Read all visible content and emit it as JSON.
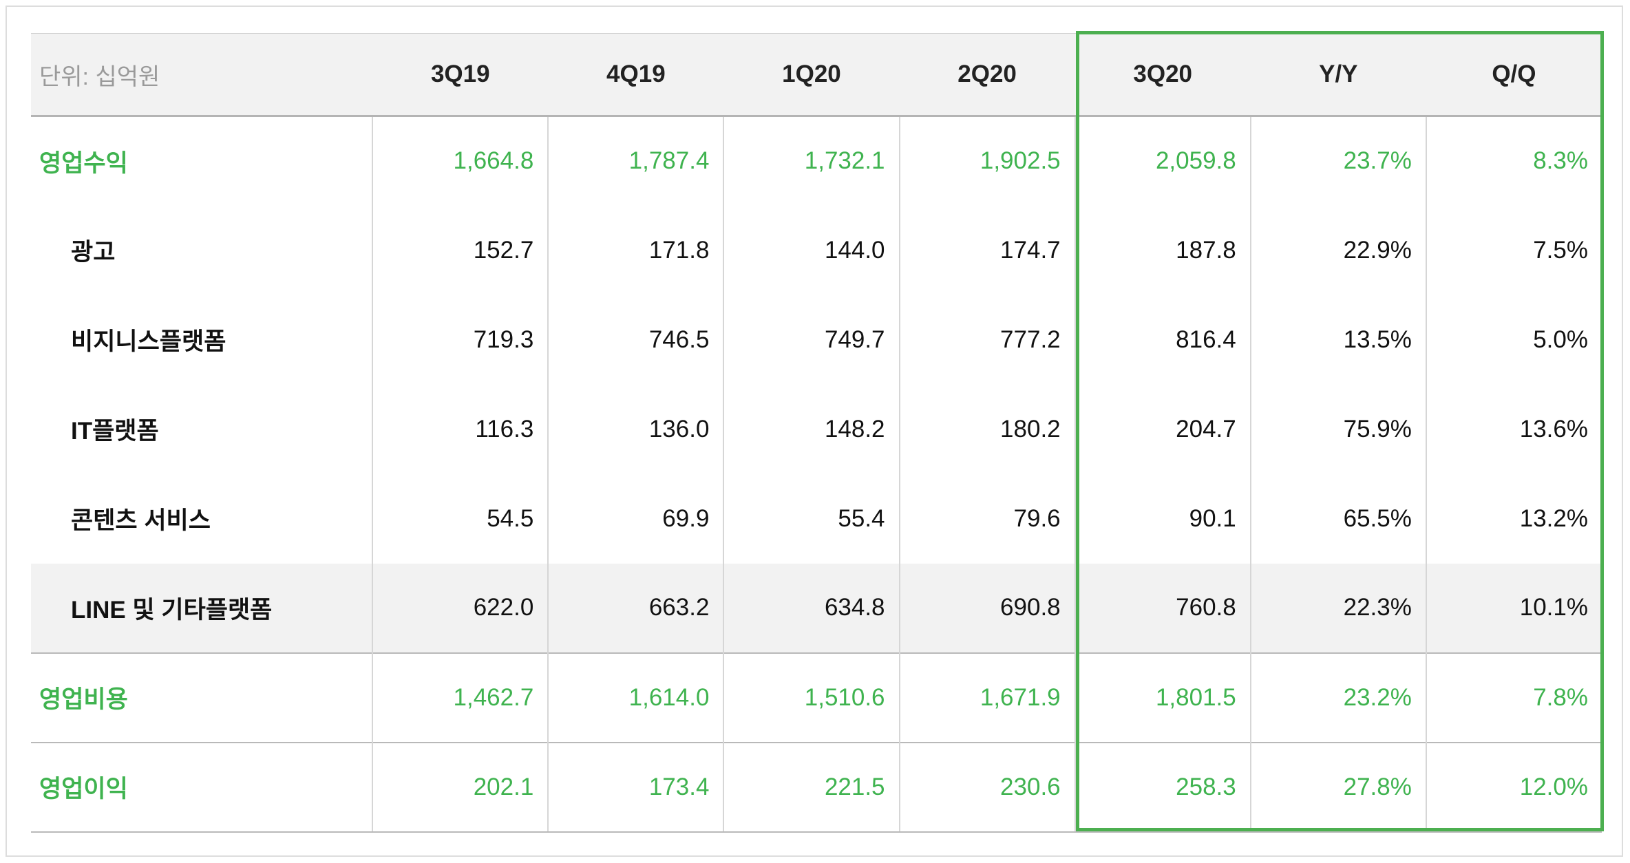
{
  "colors": {
    "accent": "#3fb34f",
    "highlight_box": "#4caf50",
    "row_highlight": "#f2f2f2",
    "header_bg": "#f2f2f2"
  },
  "chart_data": {
    "type": "table",
    "unit_label": "단위: 십억원",
    "columns": [
      "3Q19",
      "4Q19",
      "1Q20",
      "2Q20",
      "3Q20",
      "Y/Y",
      "Q/Q"
    ],
    "highlight_columns": [
      "3Q20",
      "Y/Y",
      "Q/Q"
    ],
    "rows": [
      {
        "label": "영업수익",
        "kind": "total",
        "values": [
          "1,664.8",
          "1,787.4",
          "1,732.1",
          "1,902.5",
          "2,059.8",
          "23.7%",
          "8.3%"
        ]
      },
      {
        "label": "광고",
        "kind": "sub",
        "values": [
          "152.7",
          "171.8",
          "144.0",
          "174.7",
          "187.8",
          "22.9%",
          "7.5%"
        ]
      },
      {
        "label": "비지니스플랫폼",
        "kind": "sub",
        "values": [
          "719.3",
          "746.5",
          "749.7",
          "777.2",
          "816.4",
          "13.5%",
          "5.0%"
        ]
      },
      {
        "label": "IT플랫폼",
        "kind": "sub",
        "values": [
          "116.3",
          "136.0",
          "148.2",
          "180.2",
          "204.7",
          "75.9%",
          "13.6%"
        ]
      },
      {
        "label": "콘텐츠 서비스",
        "kind": "sub",
        "values": [
          "54.5",
          "69.9",
          "55.4",
          "79.6",
          "90.1",
          "65.5%",
          "13.2%"
        ]
      },
      {
        "label": "LINE 및 기타플랫폼",
        "kind": "sub",
        "highlighted": true,
        "values": [
          "622.0",
          "663.2",
          "634.8",
          "690.8",
          "760.8",
          "22.3%",
          "10.1%"
        ]
      },
      {
        "label": "영업비용",
        "kind": "total",
        "values": [
          "1,462.7",
          "1,614.0",
          "1,510.6",
          "1,671.9",
          "1,801.5",
          "23.2%",
          "7.8%"
        ]
      },
      {
        "label": "영업이익",
        "kind": "total",
        "values": [
          "202.1",
          "173.4",
          "221.5",
          "230.6",
          "258.3",
          "27.8%",
          "12.0%"
        ]
      }
    ]
  }
}
